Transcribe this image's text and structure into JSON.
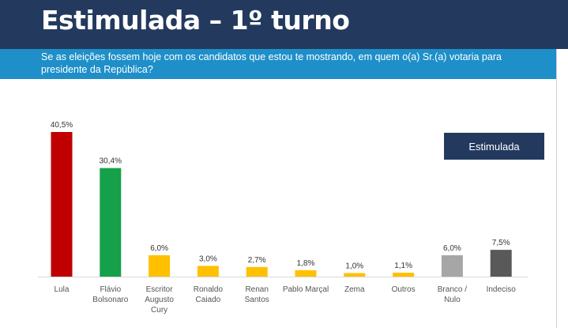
{
  "header": {
    "title": "Estimulada – 1º turno"
  },
  "question": {
    "text": "Se as eleições fossem hoje com os candidatos que estou te mostrando, em quem o(a) Sr.(a) votaria para presidente da República?"
  },
  "legend": {
    "label": "Estimulada"
  },
  "chart_data": {
    "type": "bar",
    "categories": [
      [
        "Lula"
      ],
      [
        "Flávio",
        "Bolsonaro"
      ],
      [
        "Escritor",
        "Augusto",
        "Cury"
      ],
      [
        "Ronaldo",
        "Caiado"
      ],
      [
        "Renan",
        "Santos"
      ],
      [
        "Pablo Marçal"
      ],
      [
        "Zema"
      ],
      [
        "Outros"
      ],
      [
        "Branco /",
        "Nulo"
      ],
      [
        "Indeciso"
      ]
    ],
    "series": [
      {
        "values": [
          40.5,
          30.4,
          6.0,
          3.0,
          2.7,
          1.8,
          1.0,
          1.1,
          6.0,
          7.5
        ],
        "labels": [
          "40,5%",
          "30,4%",
          "6,0%",
          "3,0%",
          "2,7%",
          "1,8%",
          "1,0%",
          "1,1%",
          "6,0%",
          "7,5%"
        ]
      }
    ],
    "colors": [
      "#c00000",
      "#16a04a",
      "#ffc000",
      "#ffc000",
      "#ffc000",
      "#ffc000",
      "#ffc000",
      "#ffc000",
      "#a6a6a6",
      "#595959"
    ],
    "ylim": [
      0,
      40.5
    ],
    "grid": false,
    "legend_position": "top-right"
  }
}
